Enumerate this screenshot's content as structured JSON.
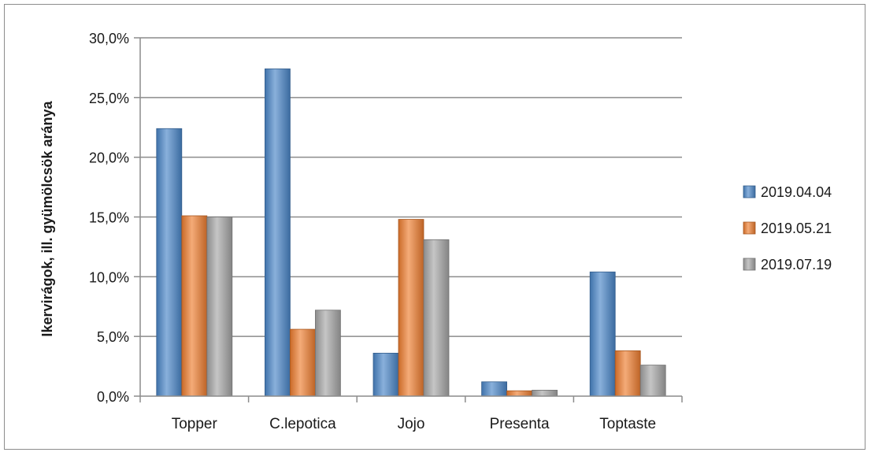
{
  "chart_data": {
    "type": "bar",
    "title": "",
    "xlabel": "",
    "ylabel": "Ikervirágok, ill. gyümölcsök aránya",
    "categories": [
      "Topper",
      "C.lepotica",
      "Jojo",
      "Presenta",
      "Toptaste"
    ],
    "series": [
      {
        "name": "2019.04.04",
        "color": "#4a86c8",
        "values": [
          22.4,
          27.4,
          3.6,
          1.2,
          10.4
        ]
      },
      {
        "name": "2019.05.21",
        "color": "#ee7d2f",
        "values": [
          15.1,
          5.6,
          14.8,
          0.45,
          3.8
        ]
      },
      {
        "name": "2019.07.19",
        "color": "#a5a5a5",
        "values": [
          15.0,
          7.2,
          13.1,
          0.5,
          2.6
        ]
      }
    ],
    "ylim": [
      0,
      30
    ],
    "yticks": [
      "0,0%",
      "5,0%",
      "10,0%",
      "15,0%",
      "20,0%",
      "25,0%",
      "30,0%"
    ],
    "grid": true,
    "legend": "right"
  }
}
